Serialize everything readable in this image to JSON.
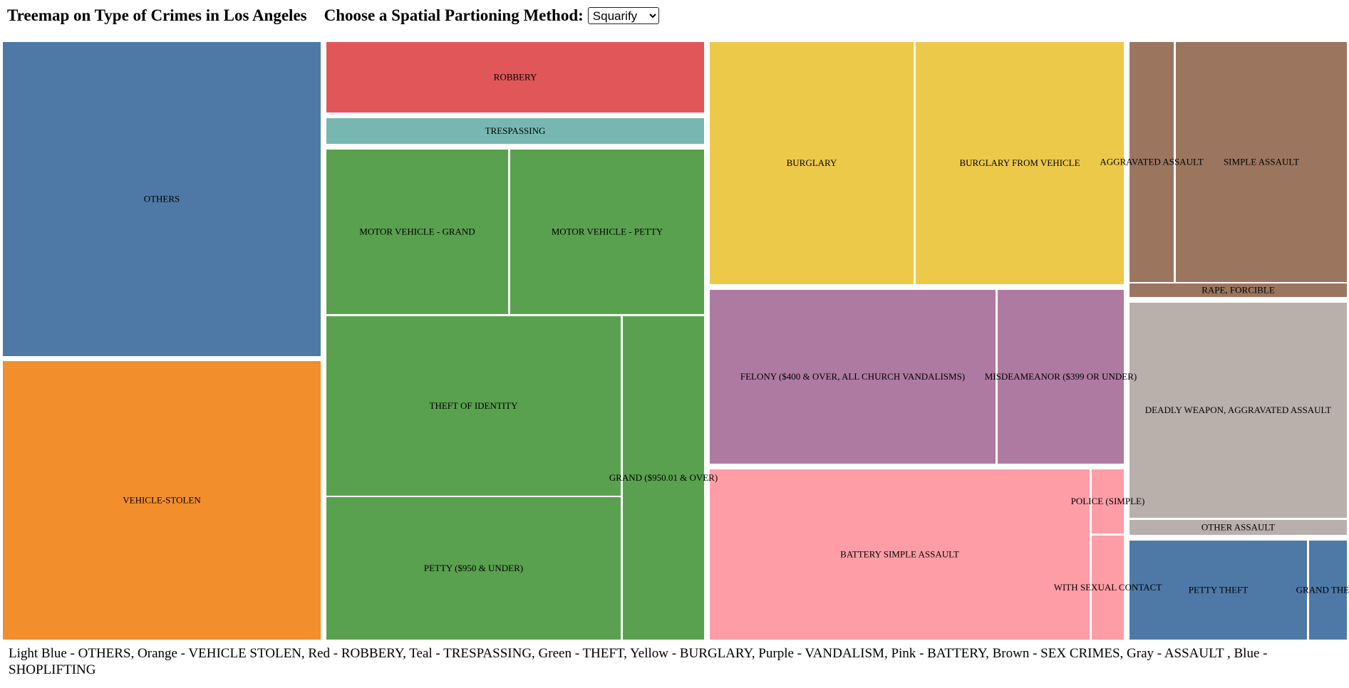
{
  "header": {
    "title": "Treemap on Type of Crimes in Los Angeles",
    "method_label": "Choose a Spatial Partioning Method:",
    "method_selected": "Squarify"
  },
  "chart_data": {
    "type": "treemap",
    "title": "Treemap on Type of Crimes in Los Angeles",
    "colors": {
      "OTHERS": "#4e79a7",
      "VEHICLE STOLEN": "#f28e2c",
      "ROBBERY": "#e15759",
      "TRESPASSING": "#76b7b2",
      "THEFT": "#59a14f",
      "BURGLARY": "#edc949",
      "VANDALISM": "#af7aa1",
      "BATTERY": "#ff9da7",
      "SEX CRIMES": "#9c755f",
      "ASSAULT": "#bab0ab",
      "SHOPLIFTING": "#4e79a7"
    },
    "groups": [
      {
        "name": "OTHERS",
        "children": [
          {
            "label": "OTHERS",
            "value": 13600
          }
        ]
      },
      {
        "name": "VEHICLE STOLEN",
        "children": [
          {
            "label": "VEHICLE-STOLEN",
            "value": 12100
          }
        ]
      },
      {
        "name": "ROBBERY",
        "children": [
          {
            "label": "ROBBERY",
            "value": 3900
          }
        ]
      },
      {
        "name": "TRESPASSING",
        "children": [
          {
            "label": "TRESPASSING",
            "value": 1400
          }
        ]
      },
      {
        "name": "THEFT",
        "children": [
          {
            "label": "MOTOR VEHICLE - GRAND",
            "value": 4400
          },
          {
            "label": "MOTOR VEHICLE - PETTY",
            "value": 4600
          },
          {
            "label": "THEFT OF IDENTITY",
            "value": 7800
          },
          {
            "label": "PETTY ($950 & UNDER)",
            "value": 6200
          },
          {
            "label": "GRAND ($950.01 & OVER)",
            "value": 3900
          }
        ]
      },
      {
        "name": "BURGLARY",
        "children": [
          {
            "label": "BURGLARY",
            "value": 7200
          },
          {
            "label": "BURGLARY FROM VEHICLE",
            "value": 7300
          }
        ]
      },
      {
        "name": "VANDALISM",
        "children": [
          {
            "label": "FELONY ($400 & OVER, ALL CHURCH VANDALISMS)",
            "value": 6800
          },
          {
            "label": "MISDEAMEANOR ($399 OR UNDER)",
            "value": 3000
          }
        ]
      },
      {
        "name": "BATTERY",
        "children": [
          {
            "label": "BATTERY SIMPLE ASSAULT",
            "value": 9000
          },
          {
            "label": "POLICE (SIMPLE)",
            "value": 600
          },
          {
            "label": "WITH SEXUAL CONTACT",
            "value": 900
          }
        ]
      },
      {
        "name": "SEX CRIMES",
        "children": [
          {
            "label": "AGGRAVATED ASSAULT",
            "value": 1400
          },
          {
            "label": "SIMPLE ASSAULT",
            "value": 4800
          },
          {
            "label": "RAPE, FORCIBLE",
            "value": 400
          }
        ]
      },
      {
        "name": "ASSAULT",
        "children": [
          {
            "label": "DEADLY WEAPON, AGGRAVATED ASSAULT",
            "value": 5900
          },
          {
            "label": "OTHER ASSAULT",
            "value": 500
          }
        ]
      },
      {
        "name": "SHOPLIFTING",
        "children": [
          {
            "label": "PETTY THEFT",
            "value": 2400
          },
          {
            "label": "GRAND THEFT",
            "value": 500
          }
        ]
      }
    ]
  },
  "legend_text": "Light Blue - OTHERS, Orange - VEHICLE STOLEN, Red - ROBBERY, Teal - TRESPASSING, Green - THEFT, Yellow - BURGLARY, Purple - VANDALISM, Pink - BATTERY, Brown - SEX CRIMES, Gray - ASSAULT , Blue - SHOPLIFTING"
}
